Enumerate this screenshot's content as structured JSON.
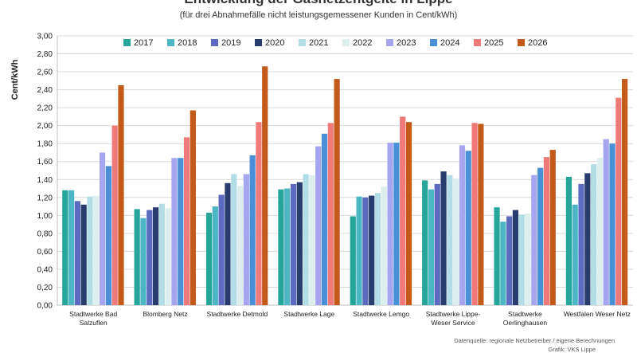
{
  "chart_data": {
    "type": "bar",
    "title": "Entwicklung der Gasnetzentgelte in Lippe",
    "subtitle": "(für drei Abnahmefälle nicht leistungsgemessener Kunden in Cent/kWh)",
    "ylabel": "Cent/kWh",
    "xlabel": "",
    "ylim": [
      0,
      3.0
    ],
    "yticks": [
      "0,00",
      "0,20",
      "0,40",
      "0,60",
      "0,80",
      "1,00",
      "1,20",
      "1,40",
      "1,60",
      "1,80",
      "2,00",
      "2,20",
      "2,40",
      "2,60",
      "2,80",
      "3,00"
    ],
    "grid": true,
    "legend_position": "top",
    "categories": [
      [
        "Stadtwerke Bad",
        "Salzuflen"
      ],
      [
        "Blomberg Netz"
      ],
      [
        "Stadtwerke Detmold"
      ],
      [
        "Stadtwerke Lage"
      ],
      [
        "Stadtwerke Lemgo"
      ],
      [
        "Stadtwerke Lippe-",
        "Weser Service"
      ],
      [
        "Stadtwerke",
        "Oerlinghausen"
      ],
      [
        "Westfalen Weser Netz"
      ]
    ],
    "series": [
      {
        "name": "2017",
        "color": "#26a69a",
        "values": [
          1.28,
          1.07,
          1.03,
          1.29,
          0.99,
          1.39,
          1.09,
          1.43
        ]
      },
      {
        "name": "2018",
        "color": "#4db6c4",
        "values": [
          1.28,
          0.97,
          1.1,
          1.3,
          1.21,
          1.29,
          0.93,
          1.12
        ]
      },
      {
        "name": "2019",
        "color": "#5c6bc0",
        "values": [
          1.16,
          1.06,
          1.23,
          1.35,
          1.2,
          1.35,
          0.99,
          1.35
        ]
      },
      {
        "name": "2020",
        "color": "#283c6e",
        "values": [
          1.12,
          1.09,
          1.36,
          1.37,
          1.22,
          1.49,
          1.06,
          1.47
        ]
      },
      {
        "name": "2021",
        "color": "#b3dde6",
        "values": [
          1.21,
          1.13,
          1.46,
          1.46,
          1.25,
          1.45,
          1.01,
          1.57
        ]
      },
      {
        "name": "2022",
        "color": "#dcefee",
        "values": [
          1.22,
          1.08,
          1.33,
          1.45,
          1.32,
          1.41,
          1.02,
          1.64
        ]
      },
      {
        "name": "2023",
        "color": "#a6a6f0",
        "values": [
          1.7,
          1.64,
          1.46,
          1.77,
          1.81,
          1.78,
          1.45,
          1.85
        ]
      },
      {
        "name": "2024",
        "color": "#4a90d9",
        "values": [
          1.55,
          1.64,
          1.67,
          1.91,
          1.81,
          1.72,
          1.53,
          1.8
        ]
      },
      {
        "name": "2025",
        "color": "#f07a7a",
        "values": [
          2.0,
          1.87,
          2.04,
          2.03,
          2.1,
          2.03,
          1.65,
          2.31
        ]
      },
      {
        "name": "2026",
        "color": "#c45a1a",
        "values": [
          2.45,
          2.17,
          2.66,
          2.52,
          2.04,
          2.02,
          1.73,
          2.52
        ]
      }
    ]
  },
  "footer": {
    "source": "Datenquelle: regionale Netzbetreiber / eigene Berechnungen",
    "source2": "Grafik: VKS Lippe"
  }
}
